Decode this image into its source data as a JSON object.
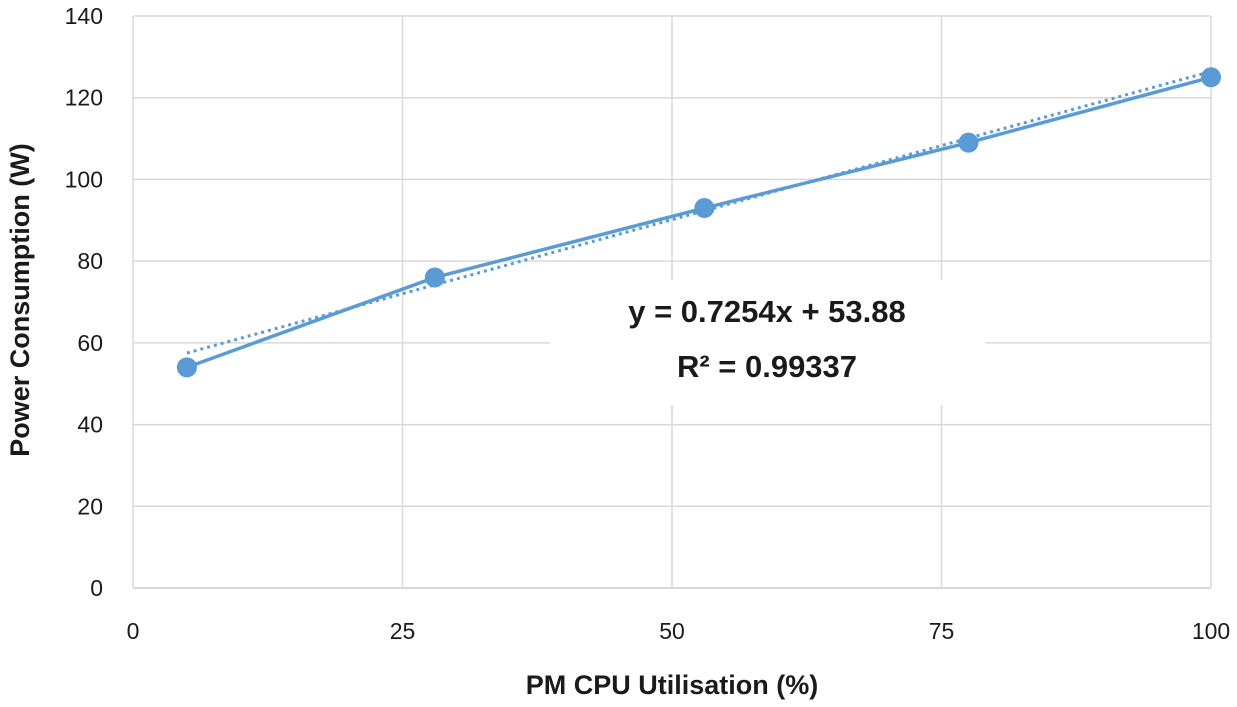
{
  "chart_data": {
    "type": "scatter",
    "xlabel": "PM CPU Utilisation (%)",
    "ylabel": "Power Consumption (W)",
    "xlim": [
      0,
      100
    ],
    "ylim": [
      0,
      140
    ],
    "x_ticks": [
      "0",
      "25",
      "50",
      "75",
      "100"
    ],
    "y_ticks": [
      "0",
      "20",
      "40",
      "60",
      "80",
      "100",
      "120",
      "140"
    ],
    "grid": true,
    "series": [
      {
        "color": "#5b9bd5",
        "marker": "circle",
        "line": "solid",
        "x": [
          5,
          28,
          53,
          77.5,
          100
        ],
        "y": [
          54,
          76,
          93,
          109,
          125
        ]
      }
    ],
    "trendline": {
      "type": "linear",
      "line": "dotted",
      "color": "#5b9bd5",
      "slope": 0.7254,
      "intercept": 53.88,
      "equation": "y = 0.7254x + 53.88",
      "r_squared": "R² = 0.99337"
    }
  }
}
